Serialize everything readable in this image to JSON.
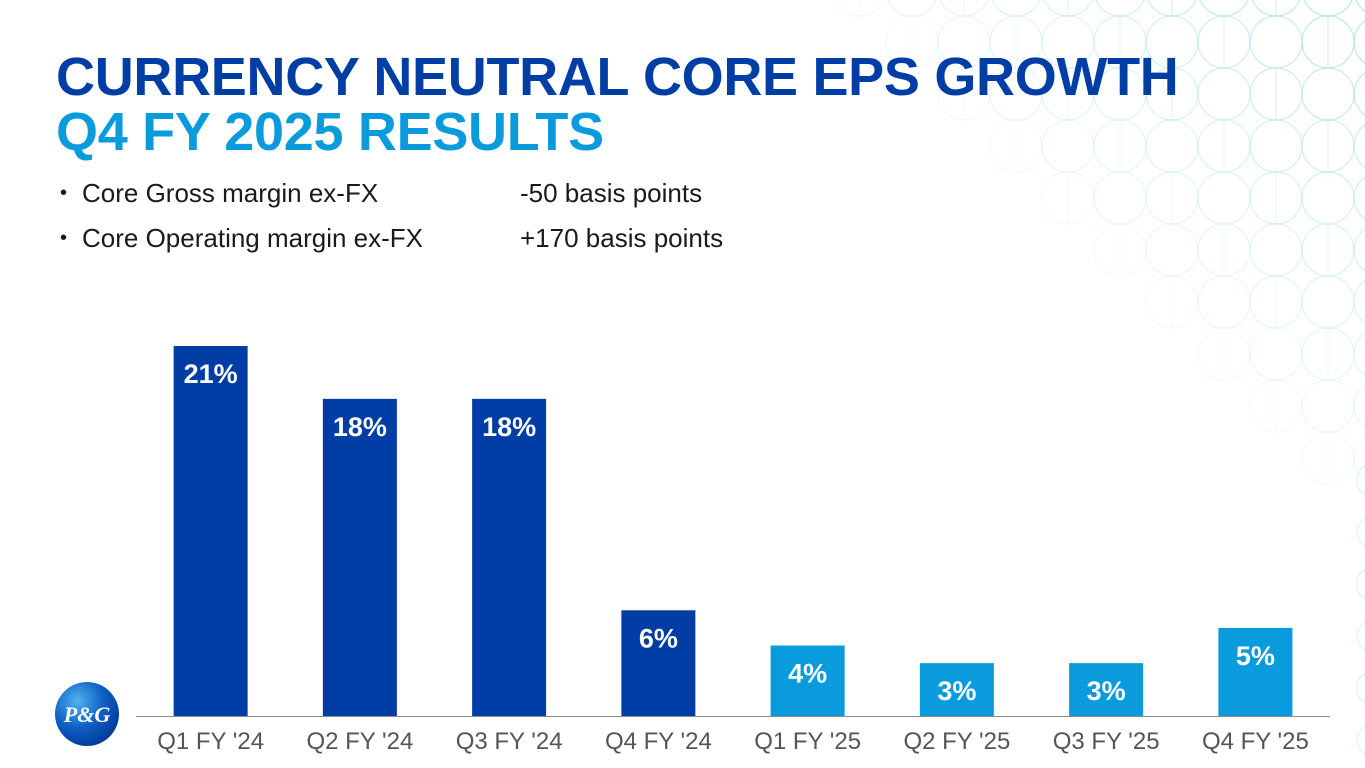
{
  "title": {
    "line1": "CURRENCY NEUTRAL CORE EPS GROWTH",
    "line2": "Q4 FY 2025 RESULTS"
  },
  "bullets": [
    {
      "label": "Core Gross margin ex-FX",
      "value": "-50 basis points"
    },
    {
      "label": "Core Operating margin ex-FX",
      "value": "+170 basis points"
    }
  ],
  "logo": {
    "text": "P&G"
  },
  "colors": {
    "dark_blue": "#003da5",
    "light_blue": "#0a9bdc",
    "pattern": "#8fd6e8",
    "axis_text": "#555555"
  },
  "chart_data": {
    "type": "bar",
    "title": "",
    "xlabel": "",
    "ylabel": "",
    "ylim": [
      0,
      21
    ],
    "categories": [
      "Q1 FY '24",
      "Q2 FY '24",
      "Q3 FY '24",
      "Q4 FY '24",
      "Q1 FY '25",
      "Q2 FY '25",
      "Q3 FY '25",
      "Q4 FY '25"
    ],
    "values": [
      21,
      18,
      18,
      6,
      4,
      3,
      3,
      5
    ],
    "data_labels": [
      "21%",
      "18%",
      "18%",
      "6%",
      "4%",
      "3%",
      "3%",
      "5%"
    ],
    "bar_colors": [
      "#003da5",
      "#003da5",
      "#003da5",
      "#003da5",
      "#0a9bdc",
      "#0a9bdc",
      "#0a9bdc",
      "#0a9bdc"
    ]
  }
}
